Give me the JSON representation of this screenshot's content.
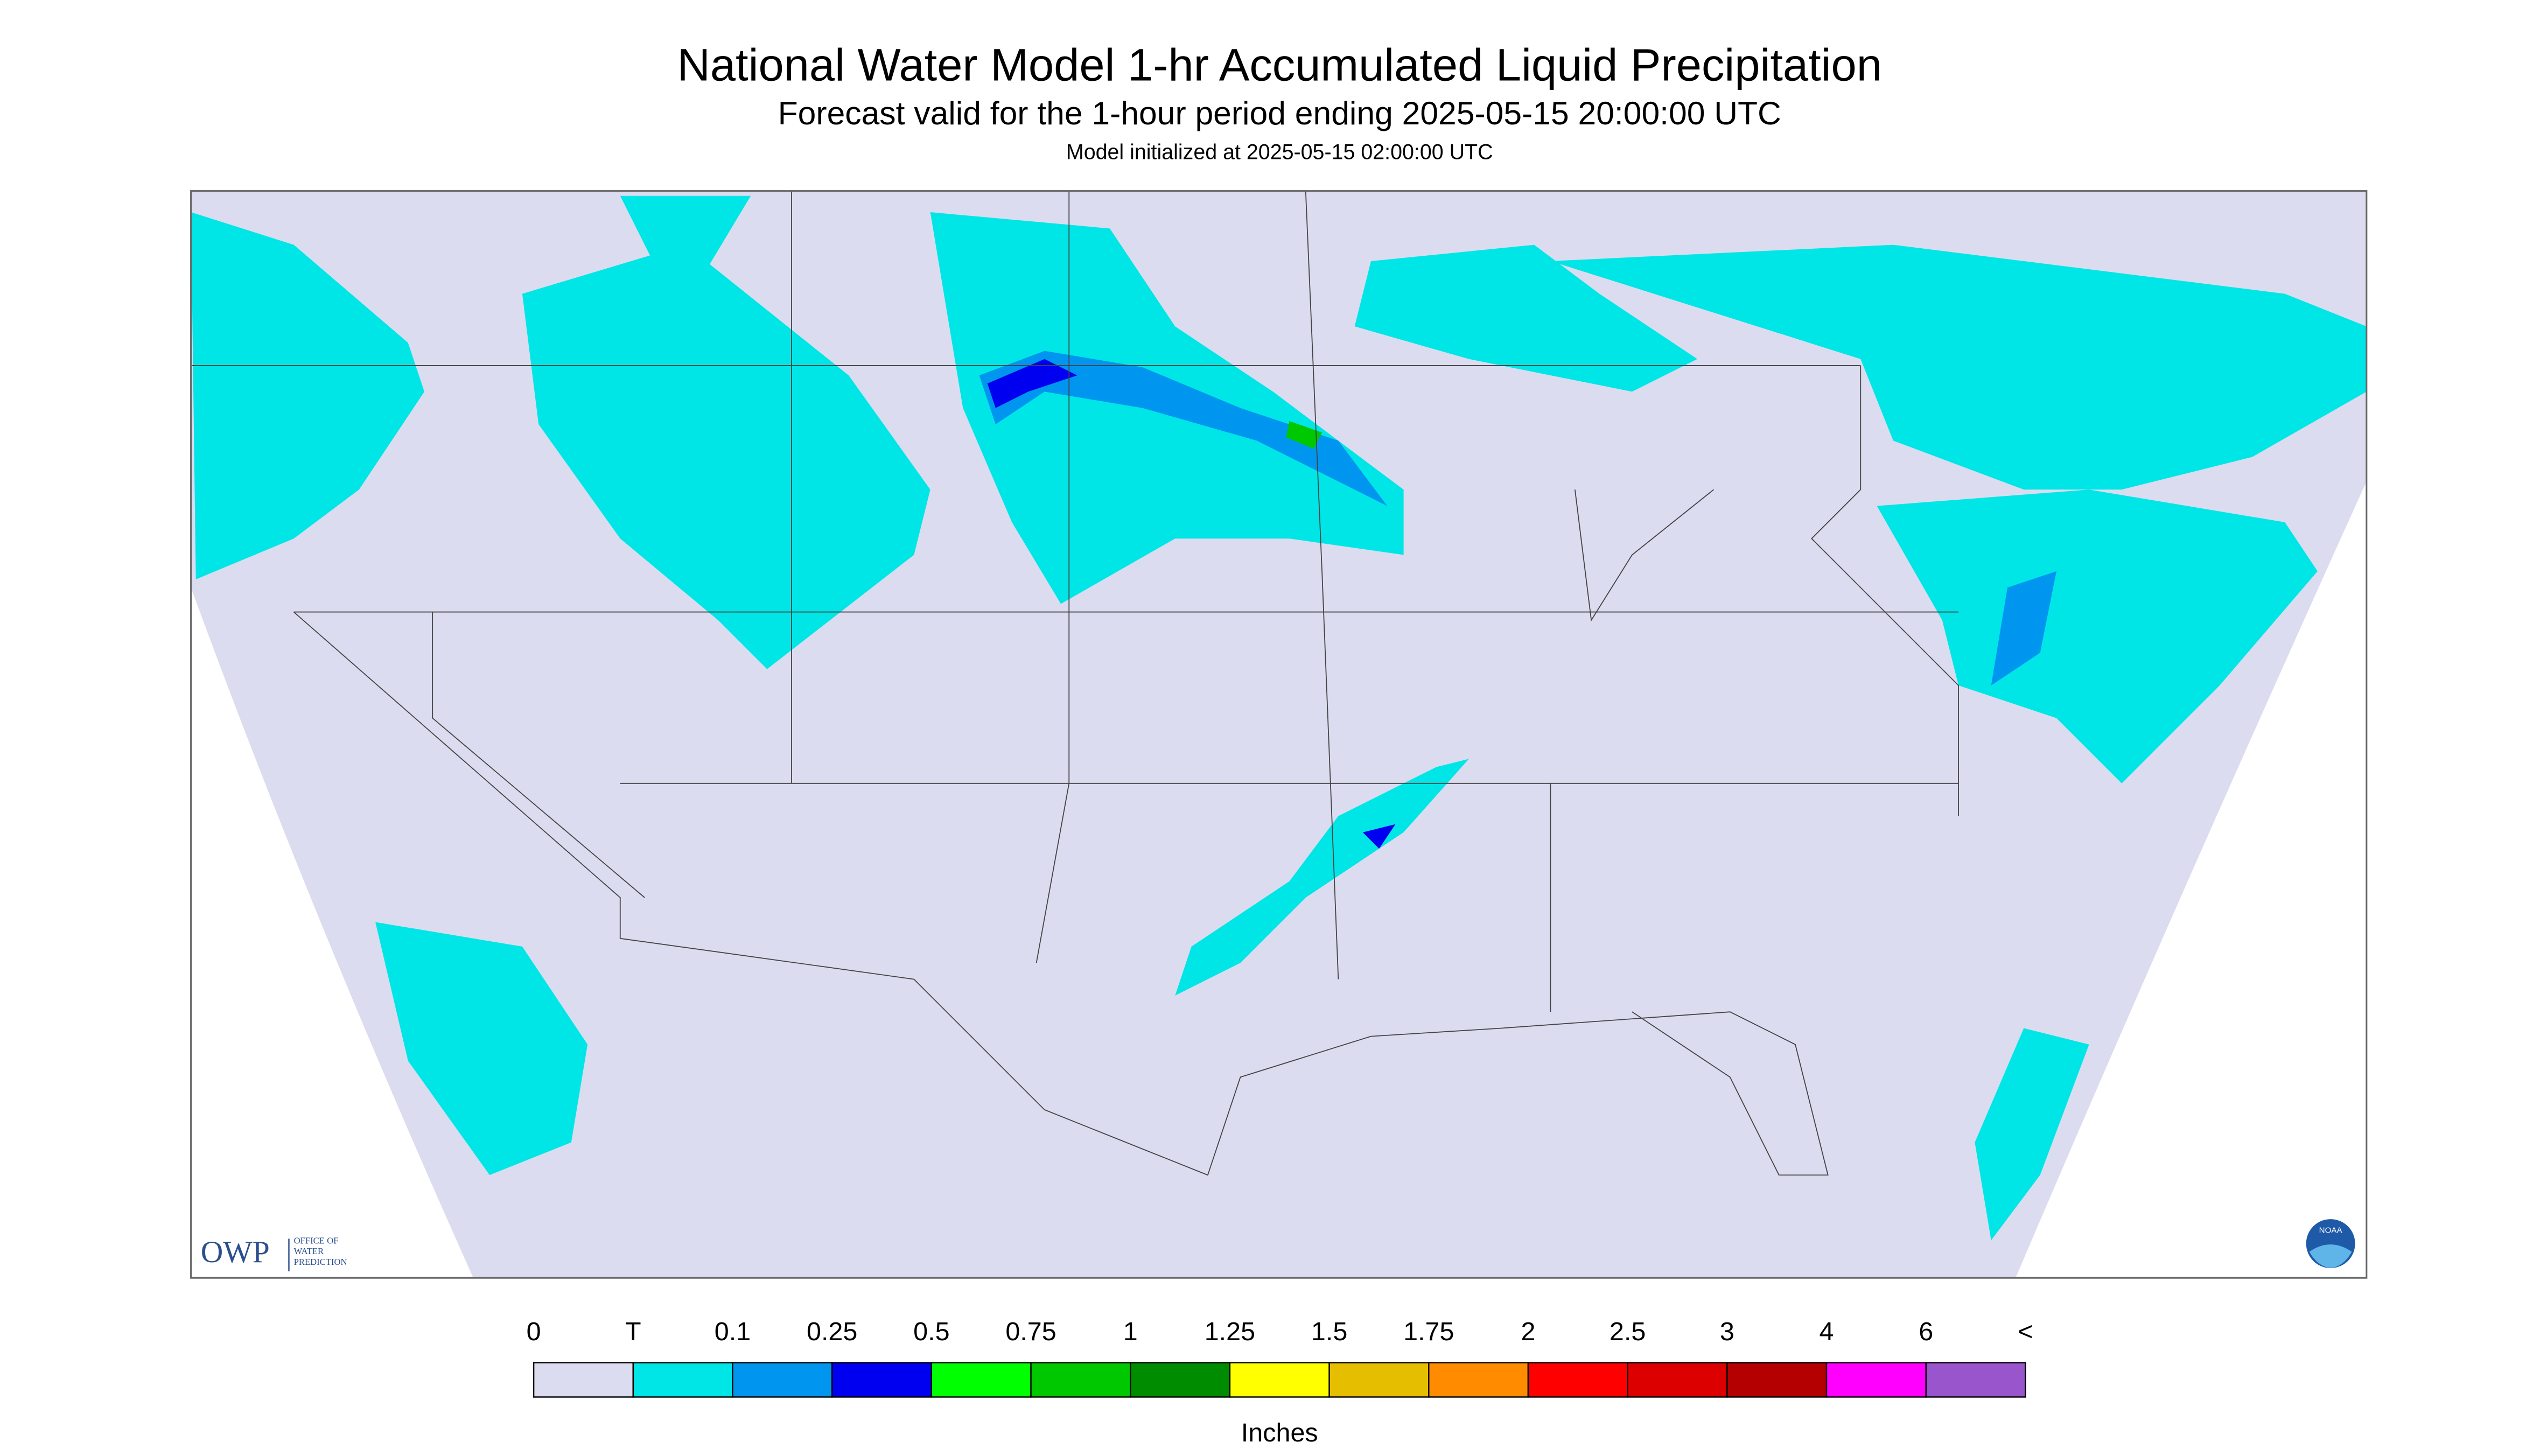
{
  "header": {
    "title": "National Water Model 1-hr Accumulated Liquid Precipitation",
    "subtitle": "Forecast valid for the 1-hour period ending 2025-05-15 20:00:00 UTC",
    "init": "Model initialized at 2025-05-15 02:00:00 UTC"
  },
  "legend": {
    "labels": [
      "0",
      "T",
      "0.1",
      "0.25",
      "0.5",
      "0.75",
      "1",
      "1.25",
      "1.5",
      "1.75",
      "2",
      "2.5",
      "3",
      "4",
      "6",
      "<"
    ],
    "colors": [
      "#dcdcf0",
      "#00e6e6",
      "#0096f0",
      "#0000f0",
      "#00ff00",
      "#00c800",
      "#008c00",
      "#ffff00",
      "#e6be00",
      "#ff8c00",
      "#ff0000",
      "#dc0000",
      "#b40000",
      "#ff00ff",
      "#9955cc"
    ],
    "unit": "Inches"
  },
  "logos": {
    "owp": "OWP",
    "owp_lines": [
      "OFFICE OF",
      "WATER",
      "PREDICTION"
    ],
    "noaa": "NOAA"
  }
}
